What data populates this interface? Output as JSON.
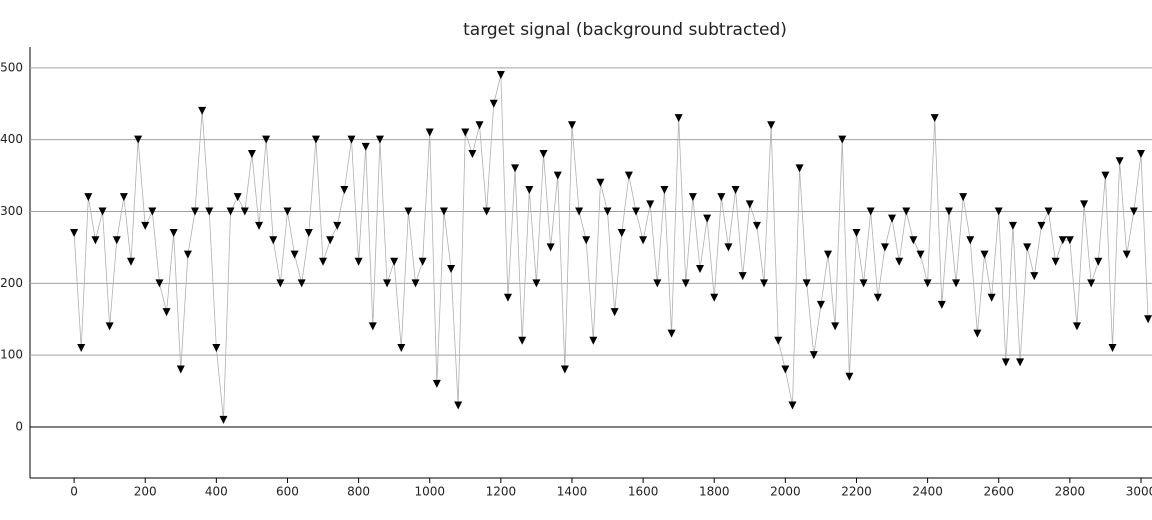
{
  "chart_data": {
    "type": "line",
    "title": "target signal (background subtracted)",
    "x": [
      0,
      20,
      40,
      60,
      80,
      100,
      120,
      140,
      160,
      180,
      200,
      220,
      240,
      260,
      280,
      300,
      320,
      340,
      360,
      380,
      400,
      420,
      440,
      460,
      480,
      500,
      520,
      540,
      560,
      580,
      600,
      620,
      640,
      660,
      680,
      700,
      720,
      740,
      760,
      780,
      800,
      820,
      840,
      860,
      880,
      900,
      920,
      940,
      960,
      980,
      1000,
      1020,
      1040,
      1060,
      1080,
      1100,
      1120,
      1140,
      1160,
      1180,
      1200,
      1220,
      1240,
      1260,
      1280,
      1300,
      1320,
      1340,
      1360,
      1380,
      1400,
      1420,
      1440,
      1460,
      1480,
      1500,
      1520,
      1540,
      1560,
      1580,
      1600,
      1620,
      1640,
      1660,
      1680,
      1700,
      1720,
      1740,
      1760,
      1780,
      1800,
      1820,
      1840,
      1860,
      1880,
      1900,
      1920,
      1940,
      1960,
      1980,
      2000,
      2020,
      2040,
      2060,
      2080,
      2100,
      2120,
      2140,
      2160,
      2180,
      2200,
      2220,
      2240,
      2260,
      2280,
      2300,
      2320,
      2340,
      2360,
      2380,
      2400,
      2420,
      2440,
      2460,
      2480,
      2500,
      2520,
      2540,
      2560,
      2580,
      2600,
      2620,
      2640,
      2660,
      2680,
      2700,
      2720,
      2740,
      2760,
      2780,
      2800,
      2820,
      2840,
      2860,
      2880,
      2900,
      2920,
      2940,
      2960,
      2980,
      3000,
      3020
    ],
    "series": [
      {
        "color": "#000000",
        "line_color": "#b0b0b0",
        "marker": "triangle-down",
        "values": [
          270,
          110,
          320,
          260,
          300,
          140,
          260,
          320,
          230,
          400,
          280,
          300,
          200,
          160,
          270,
          80,
          240,
          300,
          440,
          300,
          110,
          10,
          300,
          320,
          300,
          380,
          280,
          400,
          260,
          200,
          300,
          240,
          200,
          270,
          400,
          230,
          260,
          280,
          330,
          400,
          230,
          390,
          140,
          400,
          200,
          230,
          110,
          300,
          200,
          230,
          410,
          60,
          300,
          220,
          30,
          410,
          380,
          420,
          300,
          450,
          490,
          180,
          360,
          120,
          330,
          200,
          380,
          250,
          350,
          80,
          420,
          300,
          260,
          120,
          340,
          300,
          160,
          270,
          350,
          300,
          260,
          310,
          200,
          330,
          130,
          430,
          200,
          320,
          220,
          290,
          180,
          320,
          250,
          330,
          210,
          310,
          280,
          200,
          420,
          120,
          80,
          30,
          360,
          200,
          100,
          170,
          240,
          140,
          400,
          70,
          270,
          200,
          300,
          180,
          250,
          290,
          230,
          300,
          260,
          240,
          200,
          430,
          170,
          300,
          200,
          320,
          260,
          130,
          240,
          180,
          300,
          90,
          280,
          90,
          250,
          210,
          280,
          300,
          230,
          260,
          260,
          140,
          310,
          200,
          230,
          350,
          110,
          370,
          240,
          300,
          380,
          150
        ]
      }
    ],
    "xlim": [
      -124,
      3031
    ],
    "ylim": [
      -71,
      529
    ],
    "xticks": [
      0,
      200,
      400,
      600,
      800,
      1000,
      1200,
      1400,
      1600,
      1800,
      2000,
      2200,
      2400,
      2600,
      2800,
      3000
    ],
    "yticks": [
      0,
      100,
      200,
      300,
      400,
      500
    ],
    "grid": true
  }
}
